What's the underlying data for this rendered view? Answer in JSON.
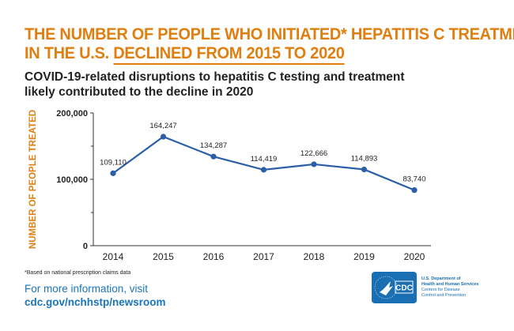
{
  "title_line1": "THE NUMBER OF PEOPLE WHO INITIATED* HEPATITIS C TREATMENT",
  "title_line2_plain": "IN THE U.S. ",
  "title_line2_underlined": "DECLINED FROM 2015 TO 2020",
  "subtitle_line1": "COVID-19-related disruptions to hepatitis C testing and treatment",
  "subtitle_line2": "likely contributed to the decline in 2020",
  "footnote": "*Based on national prescription claims data",
  "more_info": "For more information, visit",
  "more_link": "cdc.gov/nchhstp/newsroom",
  "logo": {
    "mark": "CDC",
    "line1": "U.S. Department of",
    "line2": "Health and Human Services",
    "line3": "Centers for Disease",
    "line4": "Control and Prevention"
  },
  "colors": {
    "accent": "#e07f10",
    "line": "#2a5fa8",
    "link": "#1a75bb"
  },
  "chart_data": {
    "type": "line",
    "title": "THE NUMBER OF PEOPLE WHO INITIATED* HEPATITIS C TREATMENT IN THE U.S. DECLINED FROM 2015 TO 2020",
    "ylabel": "NUMBER OF PEOPLE TREATED",
    "xlabel": "",
    "categories": [
      "2014",
      "2015",
      "2016",
      "2017",
      "2018",
      "2019",
      "2020"
    ],
    "values": [
      109110,
      164247,
      134287,
      114419,
      122666,
      114893,
      83740
    ],
    "data_labels": [
      "109,110",
      "164,247",
      "134,287",
      "114,419",
      "122,666",
      "114,893",
      "83,740"
    ],
    "ylim": [
      0,
      200000
    ],
    "yticks": [
      0,
      100000,
      200000
    ],
    "ytick_labels": [
      "0",
      "100,000",
      "200,000"
    ],
    "minor_yticks": [
      50000,
      150000
    ],
    "grid": false,
    "legend": "none"
  }
}
